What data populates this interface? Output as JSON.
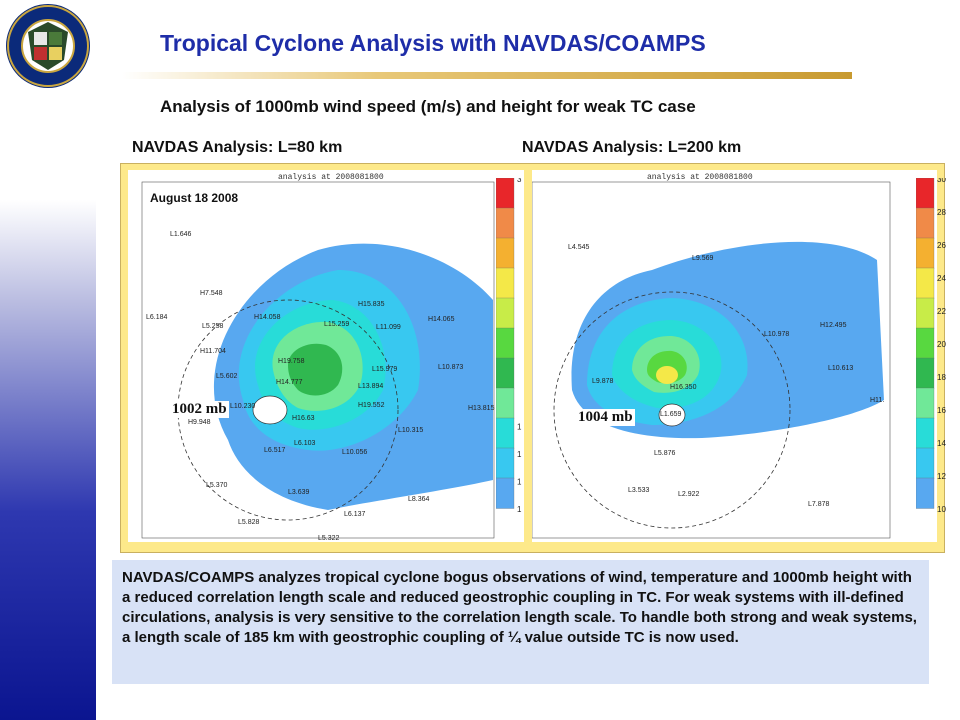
{
  "title": "Tropical Cyclone Analysis with NAVDAS/COAMPS",
  "subtitle": "Analysis of 1000mb wind speed (m/s) and height for weak TC case",
  "logo": {
    "name": "naval-research-laboratory-seal",
    "text": "NAVAL RESEARCH LABORATORY • MONTEREY, CA"
  },
  "panels": [
    {
      "label": "NAVDAS Analysis: L=80 km",
      "map_title": "analysis at 2008081800",
      "pressure_label": "1002 mb"
    },
    {
      "label": "NAVDAS Analysis: L=200 km",
      "map_title": "analysis at 2008081800",
      "pressure_label": "1004 mb"
    }
  ],
  "date_label": "August 18 2008",
  "colorbar": {
    "ticks_left": [
      "3",
      "",
      "",
      "",
      "",
      "",
      "",
      "",
      "",
      "1",
      "1",
      "1",
      "1"
    ],
    "ticks_right": [
      "30",
      "28",
      "26",
      "24",
      "22",
      "20",
      "18",
      "16",
      "14",
      "12",
      "10"
    ],
    "colors": [
      "#e8262a",
      "#f08a48",
      "#f4b030",
      "#f4e848",
      "#c8ec48",
      "#58d840",
      "#30b850",
      "#70e898",
      "#28dcd8",
      "#38c8f0",
      "#58a8f0"
    ]
  },
  "description": "NAVDAS/COAMPS analyzes tropical cyclone bogus observations of wind, temperature and 1000mb height with a reduced correlation length scale and reduced geostrophic coupling in TC.  For weak systems with ill-defined circulations, analysis is very sensitive to the correlation length scale.   To handle both strong and weak systems, a length scale of 185 km with geostrophic coupling of ¼ value outside TC is now used.",
  "map1_labels": [
    "L1.646",
    "H7.548",
    "L6.184",
    "L5.258",
    "H14.058",
    "H15.835",
    "L15.259",
    "L11.099",
    "H14.065",
    "H11.704",
    "H19.758",
    "L5.602",
    "H14.777",
    "L15.979",
    "L10.873",
    "L10.230",
    "H16.63",
    "H19.552",
    "L13.894",
    "H9.948",
    "L10.315",
    "H13.815",
    "L6.103",
    "L6.517",
    "L10.056",
    "L5.370",
    "L3.639",
    "L8.364",
    "L5.828",
    "L6.137",
    "L5.322"
  ],
  "map2_labels": [
    "L4.545",
    "L9.569",
    "L10.978",
    "H12.495",
    "L10.613",
    "L9.878",
    "H16.350",
    "H11.",
    "L1.659",
    "L5.876",
    "L3.533",
    "L2.922",
    "L7.878"
  ]
}
